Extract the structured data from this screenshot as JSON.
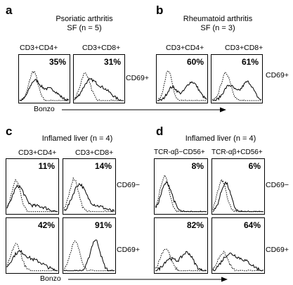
{
  "figure": {
    "panels": {
      "a": {
        "letter": "a",
        "title_line1": "Psoriatic arthritis",
        "title_line2": "SF (n = 5)",
        "col1": "CD3+CD4+",
        "col2": "CD3+CD8+",
        "row1": "CD69+",
        "values": [
          "35%",
          "31%"
        ]
      },
      "b": {
        "letter": "b",
        "title_line1": "Rheumatoid arthritis",
        "title_line2": "SF (n = 3)",
        "col1": "CD3+CD4+",
        "col2": "CD3+CD8+",
        "row1": "CD69+",
        "values": [
          "60%",
          "61%"
        ]
      },
      "c": {
        "letter": "c",
        "title": "Inflamed liver (n = 4)",
        "col1": "CD3+CD4+",
        "col2": "CD3+CD8+",
        "row1": "CD69−",
        "row2": "CD69+",
        "values": [
          "11%",
          "14%",
          "42%",
          "91%"
        ]
      },
      "d": {
        "letter": "d",
        "title": "Inflamed liver (n = 4)",
        "col1": "TCR-αβ−CD56+",
        "col2": "TCR-αβ+CD56+",
        "row1": "CD69−",
        "row2": "CD69+",
        "values": [
          "8%",
          "6%",
          "82%",
          "64%"
        ]
      }
    },
    "axis_label_top": "Bonzo",
    "axis_label_bottom": "Bonzo"
  }
}
